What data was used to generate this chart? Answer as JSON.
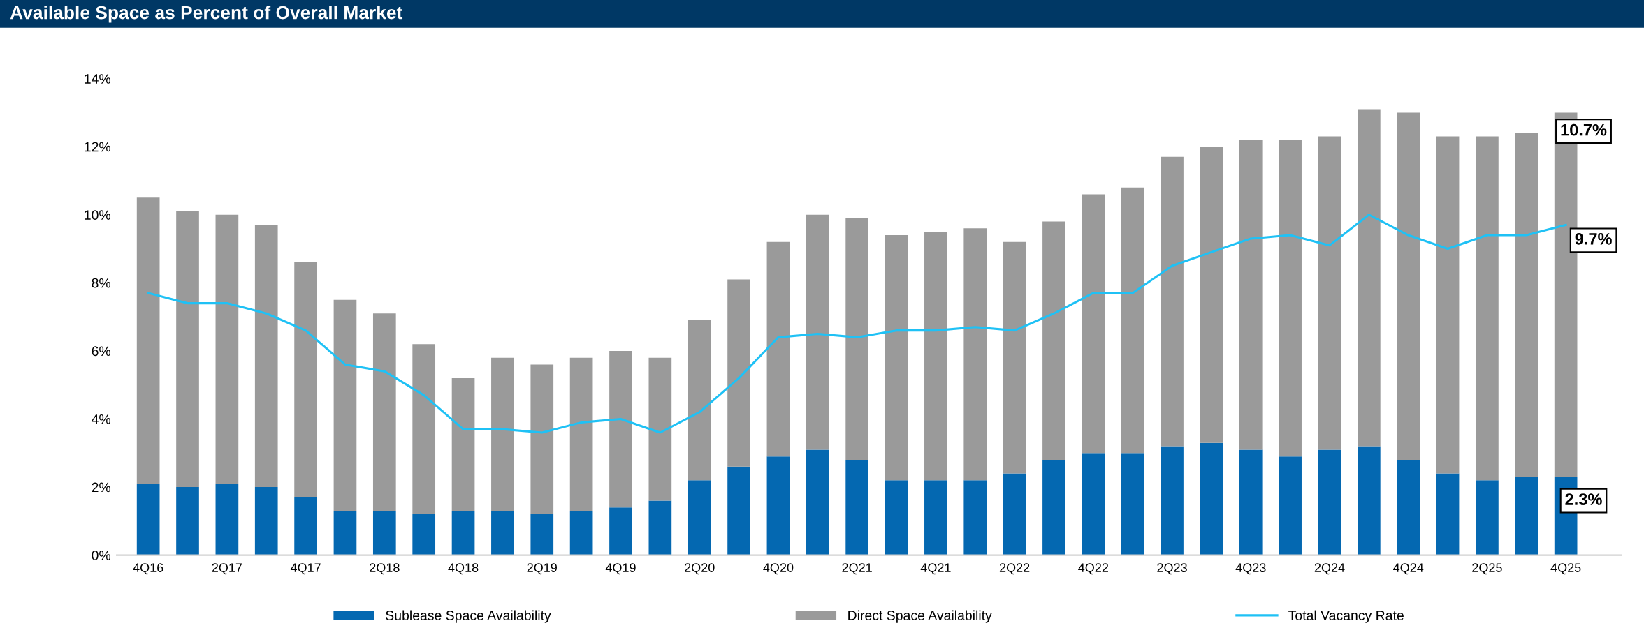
{
  "chart_data": {
    "type": "bar",
    "title": "Available Space as Percent of Overall Market",
    "stacked": true,
    "categories": [
      "4Q16",
      null,
      "2Q17",
      null,
      "4Q17",
      null,
      "2Q18",
      null,
      "4Q18",
      null,
      "2Q19",
      null,
      "4Q19",
      null,
      "2Q20",
      null,
      "4Q20",
      null,
      "2Q21",
      null,
      "4Q21",
      null,
      "2Q22",
      null,
      "4Q22",
      null,
      "2Q23",
      null,
      "4Q23",
      null,
      "2Q24",
      null,
      "4Q24",
      null,
      "2Q25",
      null,
      "4Q25"
    ],
    "series": [
      {
        "name": "Sublease Space Availability",
        "color": "#0468b1",
        "values": [
          2.1,
          2.0,
          2.1,
          2.0,
          1.7,
          1.3,
          1.3,
          1.2,
          1.3,
          1.3,
          1.2,
          1.3,
          1.4,
          1.6,
          2.2,
          2.6,
          2.9,
          3.1,
          2.8,
          2.2,
          2.2,
          2.2,
          2.4,
          2.8,
          3.0,
          3.0,
          3.2,
          3.3,
          3.1,
          2.9,
          3.1,
          3.2,
          2.8,
          2.4,
          2.2,
          2.3,
          2.3
        ],
        "value_labels": [
          null,
          null,
          null,
          null,
          null,
          null,
          null,
          null,
          null,
          null,
          null,
          null,
          null,
          null,
          null,
          null,
          null,
          null,
          null,
          null,
          null,
          null,
          null,
          null,
          null,
          null,
          null,
          null,
          null,
          null,
          null,
          null,
          null,
          null,
          null,
          null,
          "2.3%"
        ]
      },
      {
        "name": "Direct Space Availability",
        "color": "#9a9a9a",
        "values": [
          8.4,
          8.1,
          7.9,
          7.7,
          6.9,
          6.2,
          5.8,
          5.0,
          3.9,
          4.5,
          4.4,
          4.5,
          4.6,
          4.2,
          4.7,
          5.5,
          6.3,
          6.9,
          7.1,
          7.2,
          7.3,
          7.4,
          6.8,
          7.0,
          7.6,
          7.8,
          8.5,
          8.7,
          9.1,
          9.3,
          9.2,
          9.9,
          10.2,
          9.9,
          10.1,
          10.1,
          10.7
        ],
        "value_labels": [
          null,
          null,
          null,
          null,
          null,
          null,
          null,
          null,
          null,
          null,
          null,
          null,
          null,
          null,
          null,
          null,
          null,
          null,
          null,
          null,
          null,
          null,
          null,
          null,
          null,
          null,
          null,
          null,
          null,
          null,
          null,
          null,
          null,
          null,
          null,
          null,
          "10.7%"
        ]
      },
      {
        "name": "Total Vacancy Rate",
        "type": "line",
        "color": "#1fc1f5",
        "values": [
          7.7,
          7.4,
          7.4,
          7.1,
          6.6,
          5.6,
          5.4,
          4.7,
          3.7,
          3.7,
          3.6,
          3.9,
          4.0,
          3.6,
          4.2,
          5.2,
          6.4,
          6.5,
          6.4,
          6.6,
          6.6,
          6.7,
          6.6,
          7.1,
          7.7,
          7.7,
          8.5,
          8.9,
          9.3,
          9.4,
          9.1,
          10.0,
          9.4,
          9.0,
          9.4,
          9.4,
          9.7
        ],
        "value_labels": [
          null,
          null,
          null,
          null,
          null,
          null,
          null,
          null,
          null,
          null,
          null,
          null,
          null,
          null,
          null,
          null,
          null,
          null,
          null,
          null,
          null,
          null,
          null,
          null,
          null,
          null,
          null,
          null,
          null,
          null,
          null,
          null,
          null,
          null,
          null,
          null,
          "9.7%"
        ]
      }
    ],
    "ylim": [
      0,
      14
    ],
    "yticks": [
      {
        "value": 0,
        "label": "0%"
      },
      {
        "value": 2,
        "label": "2%"
      },
      {
        "value": 4,
        "label": "4%"
      },
      {
        "value": 6,
        "label": "6%"
      },
      {
        "value": 8,
        "label": "8%"
      },
      {
        "value": 10,
        "label": "10%"
      },
      {
        "value": 12,
        "label": "12%"
      },
      {
        "value": 14,
        "label": "14%"
      }
    ],
    "legend": "bottom"
  }
}
